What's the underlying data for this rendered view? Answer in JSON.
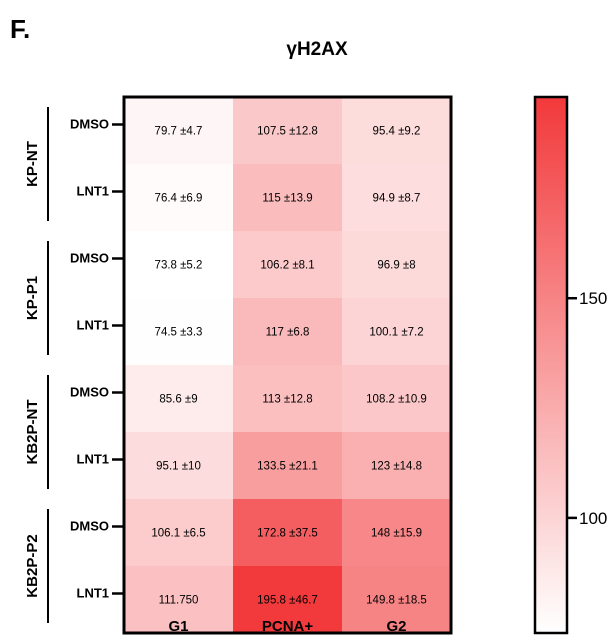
{
  "panel_letter": "F.",
  "chart_data": {
    "type": "heatmap",
    "title": "γH2AX",
    "columns": [
      "G1",
      "PCNA+",
      "G2"
    ],
    "groups": [
      {
        "label": "KP-NT",
        "rows": [
          "DMSO",
          "LNT1"
        ]
      },
      {
        "label": "KP-P1",
        "rows": [
          "DMSO",
          "LNT1"
        ]
      },
      {
        "label": "KB2P-NT",
        "rows": [
          "DMSO",
          "LNT1"
        ]
      },
      {
        "label": "KB2P-P2",
        "rows": [
          "DMSO",
          "LNT1"
        ]
      }
    ],
    "values": [
      [
        79.7,
        107.5,
        95.4
      ],
      [
        76.4,
        115,
        94.9
      ],
      [
        73.8,
        106.2,
        96.9
      ],
      [
        74.5,
        117,
        100.1
      ],
      [
        85.6,
        113,
        108.2
      ],
      [
        95.1,
        133.5,
        123
      ],
      [
        106.1,
        172.8,
        148
      ],
      [
        111.75,
        195.8,
        149.8
      ]
    ],
    "cell_labels": [
      [
        "79.7 ±4.7",
        "107.5 ±12.8",
        "95.4 ±9.2"
      ],
      [
        "76.4 ±6.9",
        "115 ±13.9",
        "94.9 ±8.7"
      ],
      [
        "73.8 ±5.2",
        "106.2 ±8.1",
        "96.9 ±8"
      ],
      [
        "74.5 ±3.3",
        "117 ±6.8",
        "100.1 ±7.2"
      ],
      [
        "85.6 ±9",
        "113 ±12.8",
        "108.2 ±10.9"
      ],
      [
        "95.1 ±10",
        "133.5 ±21.1",
        "123 ±14.8"
      ],
      [
        "106.1 ±6.5",
        "172.8 ±37.5",
        "148 ±15.9"
      ],
      [
        "111.750",
        "195.8 ±46.7",
        "149.8 ±18.5"
      ]
    ],
    "colorbar": {
      "ticks": [
        100,
        150
      ],
      "range": [
        73.8,
        195.8
      ],
      "color_low": "#ffffff",
      "color_high": "#f2393b"
    }
  }
}
